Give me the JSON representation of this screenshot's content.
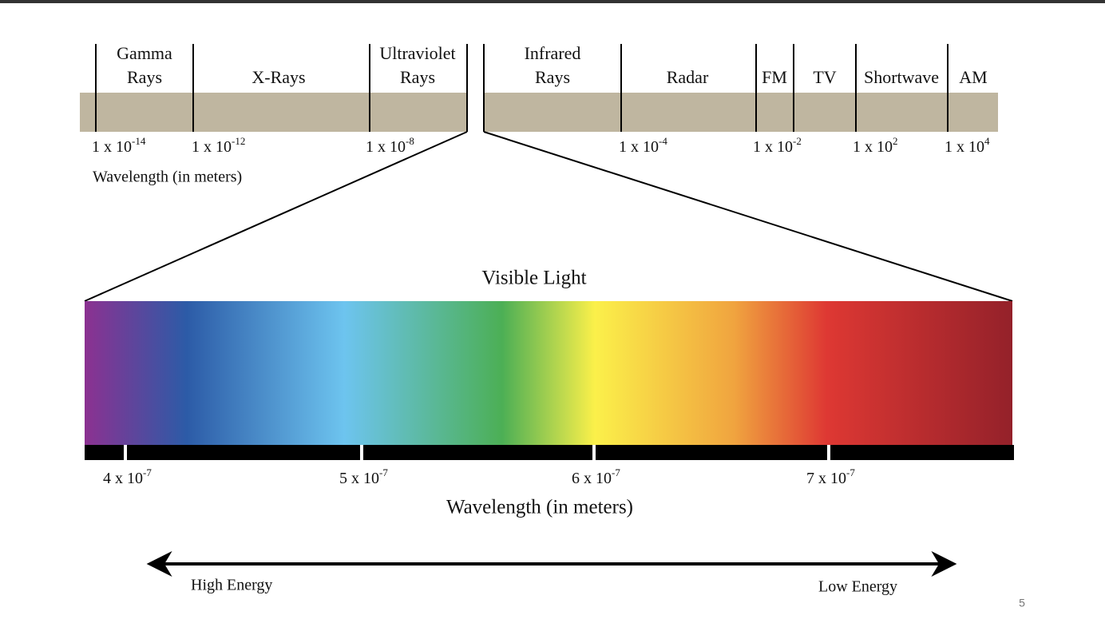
{
  "spectrum": {
    "bands": [
      {
        "lines": [
          "Gamma",
          "Rays"
        ]
      },
      {
        "lines": [
          "X-Rays"
        ]
      },
      {
        "lines": [
          "Ultraviolet",
          "Rays"
        ]
      },
      {
        "lines": [
          "Infrared",
          "Rays"
        ]
      },
      {
        "lines": [
          "Radar"
        ]
      },
      {
        "lines": [
          "FM"
        ]
      },
      {
        "lines": [
          "TV"
        ]
      },
      {
        "lines": [
          "Shortwave"
        ]
      },
      {
        "lines": [
          "AM"
        ]
      }
    ],
    "wavelength_ticks": [
      {
        "base": "1 x 10",
        "exponent": "-14"
      },
      {
        "base": "1 x 10",
        "exponent": "-12"
      },
      {
        "base": "1 x 10",
        "exponent": "-8"
      },
      {
        "base": "1 x 10",
        "exponent": "-4"
      },
      {
        "base": "1 x 10",
        "exponent": "-2"
      },
      {
        "base": "1 x 10",
        "exponent": "2"
      },
      {
        "base": "1 x 10",
        "exponent": "4"
      }
    ],
    "axis_label": "Wavelength (in meters)"
  },
  "visible": {
    "title": "Visible Light",
    "ticks": [
      {
        "base": "4 x 10",
        "exponent": "-7"
      },
      {
        "base": "5 x 10",
        "exponent": "-7"
      },
      {
        "base": "6 x 10",
        "exponent": "-7"
      },
      {
        "base": "7 x 10",
        "exponent": "-7"
      }
    ],
    "axis_label": "Wavelength (in meters)"
  },
  "energy": {
    "high": "High Energy",
    "low": "Low Energy"
  },
  "page_number": "5"
}
